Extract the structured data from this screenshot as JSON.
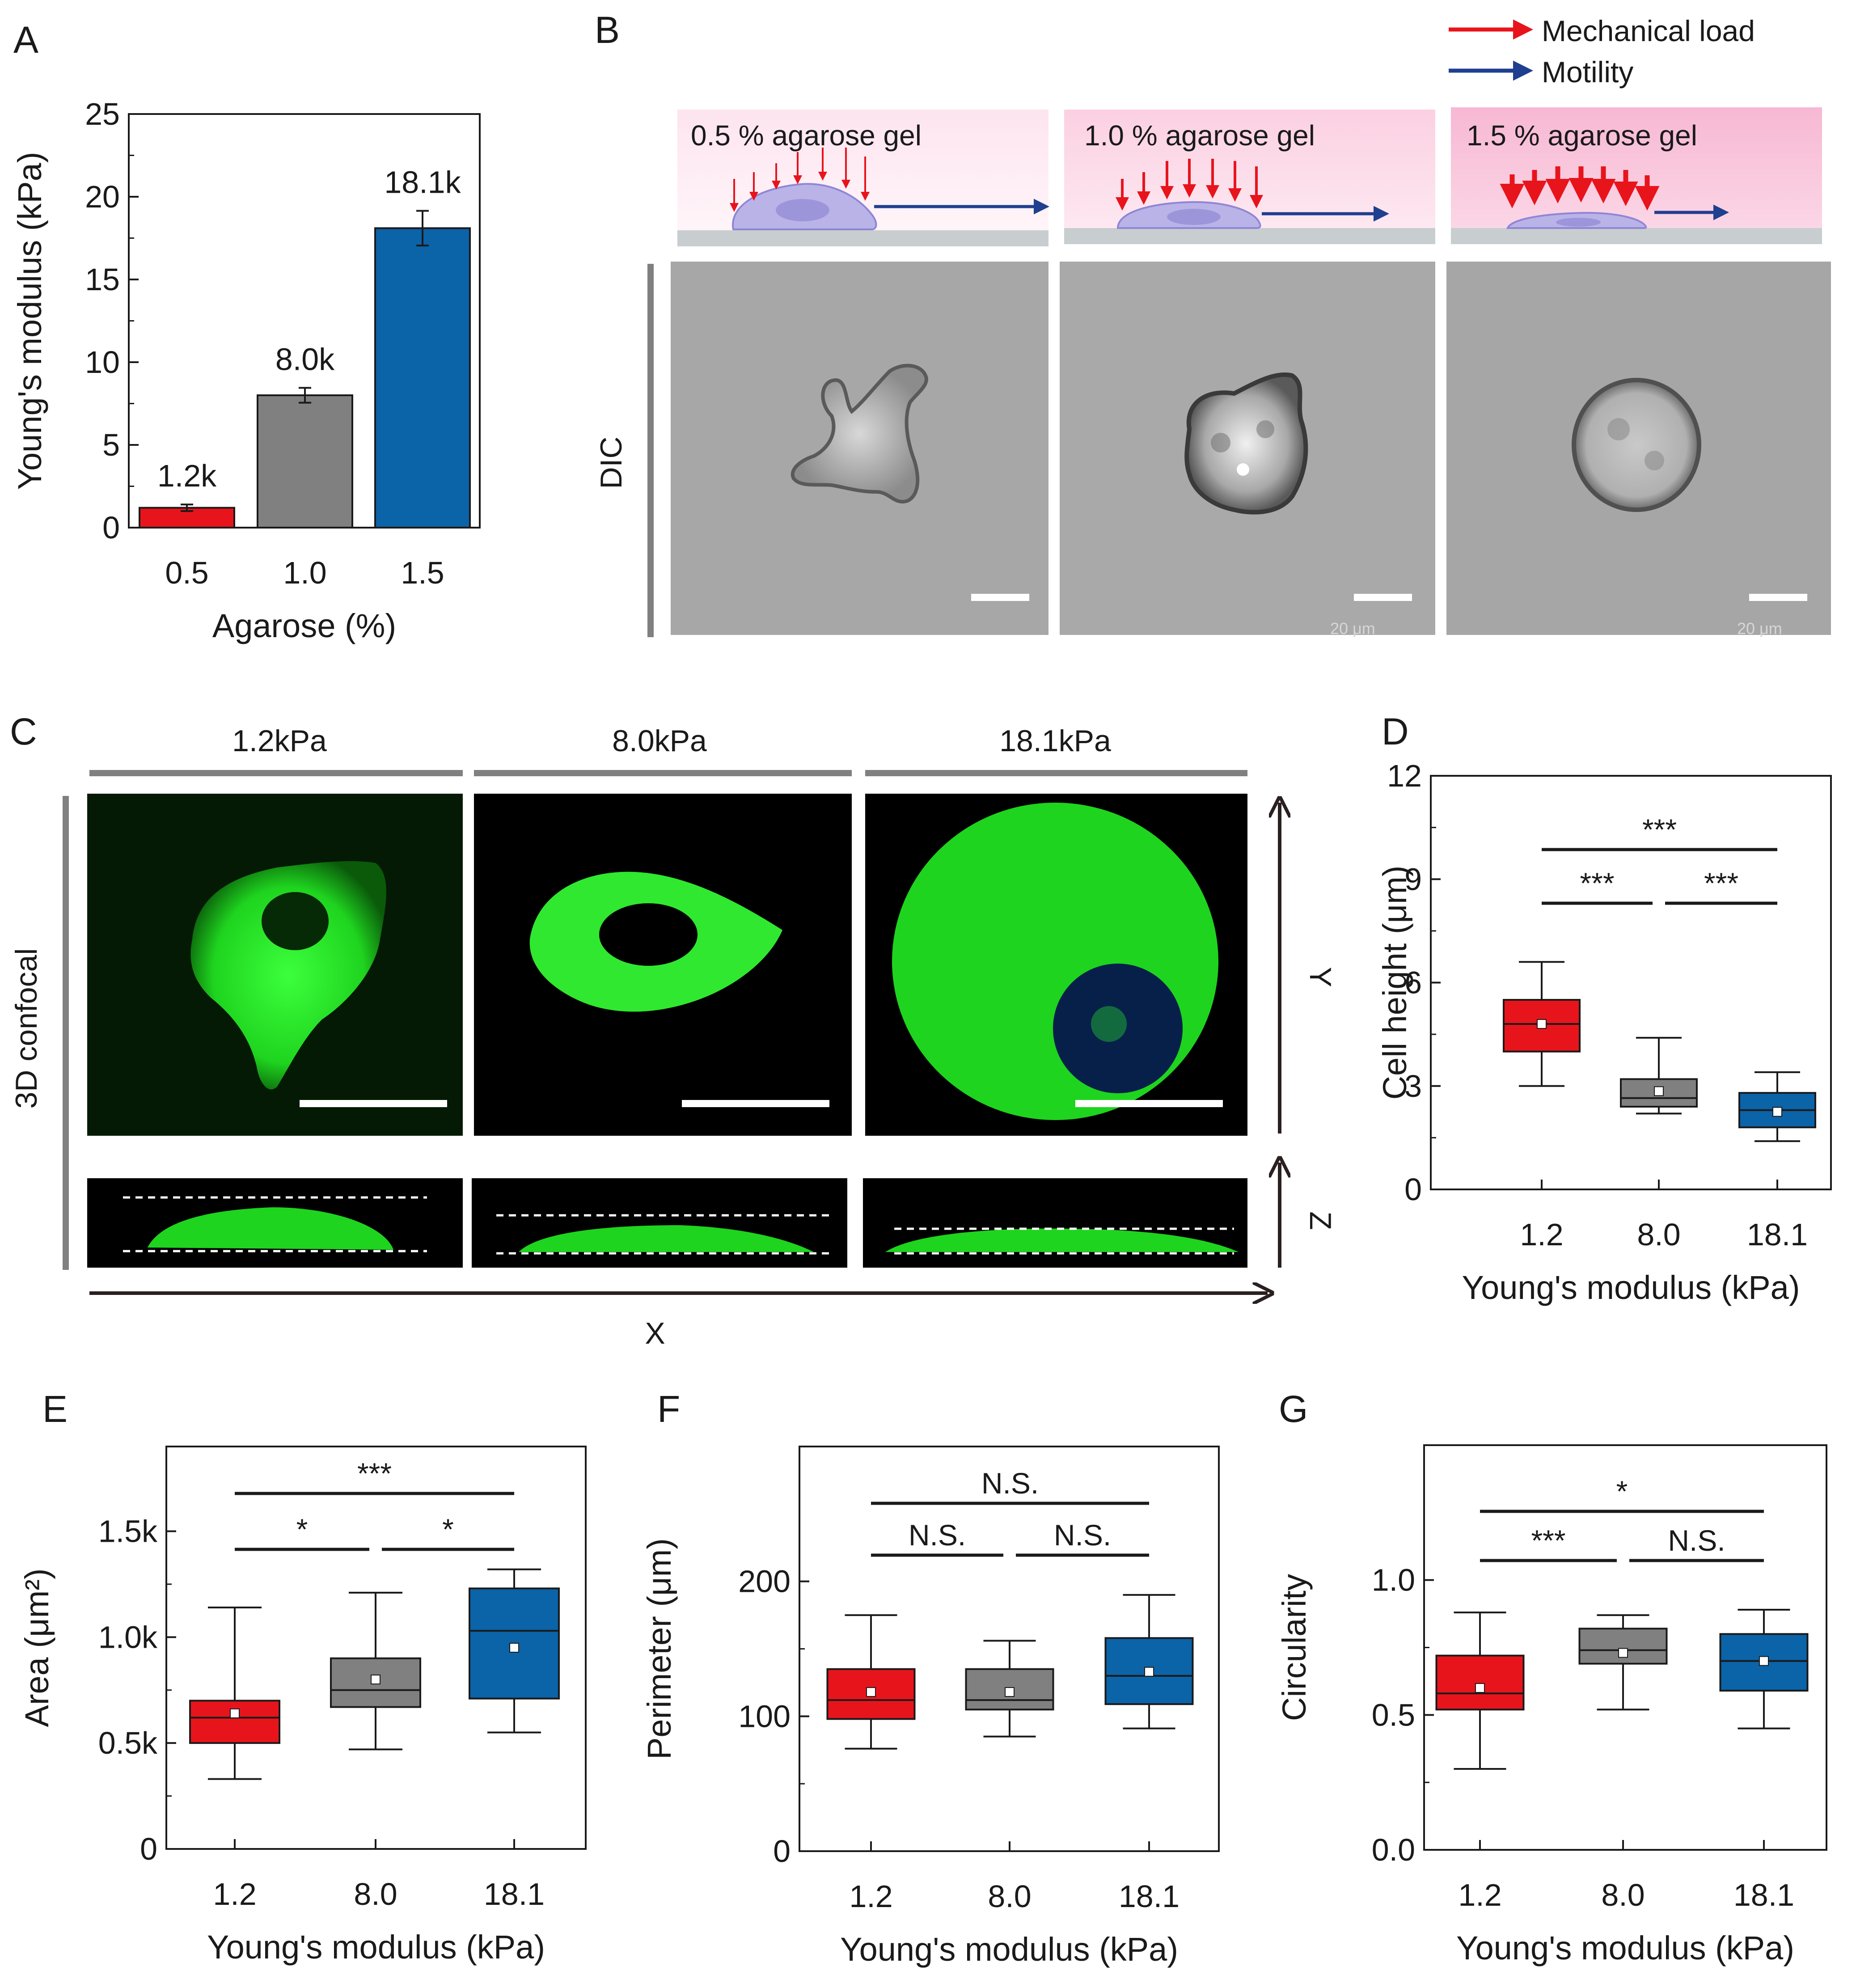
{
  "panels": {
    "A": "A",
    "B": "B",
    "C": "C",
    "D": "D",
    "E": "E",
    "F": "F",
    "G": "G"
  },
  "legend": {
    "load_label": "Mechanical load",
    "motility_label": "Motility",
    "load_color": "#e8141c",
    "motility_color": "#1f3f8f"
  },
  "gels": [
    "0.5 % agarose gel",
    "1.0 % agarose gel",
    "1.5 % agarose gel"
  ],
  "dic_label": "DIC",
  "scale_labels": [
    "20 μm",
    "20 μm"
  ],
  "confocal": {
    "row_label": "3D confocal",
    "columns": [
      "1.2kPa",
      "8.0kPa",
      "18.1kPa"
    ],
    "axis_y": "Y",
    "axis_z": "Z",
    "axis_x": "X"
  },
  "colors": {
    "red": "#e8141c",
    "gray": "#808080",
    "blue": "#0b63a8"
  },
  "chart_data": [
    {
      "panel": "A",
      "type": "bar",
      "categories": [
        "0.5",
        "1.0",
        "1.5"
      ],
      "values": [
        1.2,
        8.0,
        18.1
      ],
      "errors": [
        0.2,
        0.45,
        1.05
      ],
      "value_labels": [
        "1.2k",
        "8.0k",
        "18.1k"
      ],
      "colors": [
        "#e8141c",
        "#808080",
        "#0b63a8"
      ],
      "xlabel": "Agarose (%)",
      "ylabel": "Young's modulus (kPa)",
      "ylim": [
        0,
        25
      ],
      "yticks": [
        "0",
        "5",
        "10",
        "15",
        "20",
        "25"
      ]
    },
    {
      "panel": "D",
      "type": "box",
      "categories": [
        "1.2",
        "8.0",
        "18.1"
      ],
      "boxes": [
        {
          "min": 3.0,
          "q1": 4.0,
          "median": 4.8,
          "q3": 5.5,
          "max": 6.6,
          "mean": 4.8
        },
        {
          "min": 2.2,
          "q1": 2.4,
          "median": 2.65,
          "q3": 3.2,
          "max": 4.4,
          "mean": 2.85
        },
        {
          "min": 1.4,
          "q1": 1.8,
          "median": 2.3,
          "q3": 2.8,
          "max": 3.4,
          "mean": 2.25
        }
      ],
      "xlabel": "Young's modulus (kPa)",
      "ylabel": "Cell height (μm)",
      "ylim": [
        0,
        12
      ],
      "yticks": [
        "0",
        "3",
        "6",
        "9",
        "12"
      ],
      "significance": [
        {
          "from": 0,
          "to": 2,
          "label": "***"
        },
        {
          "from": 0,
          "to": 1,
          "label": "***"
        },
        {
          "from": 1,
          "to": 2,
          "label": "***"
        }
      ]
    },
    {
      "panel": "E",
      "type": "box",
      "categories": [
        "1.2",
        "8.0",
        "18.1"
      ],
      "boxes": [
        {
          "min": 330,
          "q1": 500,
          "median": 620,
          "q3": 700,
          "max": 1140,
          "mean": 640
        },
        {
          "min": 470,
          "q1": 670,
          "median": 750,
          "q3": 900,
          "max": 1210,
          "mean": 800
        },
        {
          "min": 550,
          "q1": 710,
          "median": 1030,
          "q3": 1230,
          "max": 1320,
          "mean": 950
        }
      ],
      "xlabel": "Young's modulus (kPa)",
      "ylabel": "Area (μm²)",
      "ylim": [
        0,
        1900
      ],
      "yticks": [
        "0",
        "0.5k",
        "1.0k",
        "1.5k"
      ],
      "significance": [
        {
          "from": 0,
          "to": 2,
          "label": "***"
        },
        {
          "from": 0,
          "to": 1,
          "label": "*"
        },
        {
          "from": 1,
          "to": 2,
          "label": "*"
        }
      ]
    },
    {
      "panel": "F",
      "type": "box",
      "categories": [
        "1.2",
        "8.0",
        "18.1"
      ],
      "boxes": [
        {
          "min": 76,
          "q1": 98,
          "median": 112,
          "q3": 135,
          "max": 175,
          "mean": 118
        },
        {
          "min": 85,
          "q1": 105,
          "median": 112,
          "q3": 135,
          "max": 156,
          "mean": 118
        },
        {
          "min": 91,
          "q1": 109,
          "median": 130,
          "q3": 158,
          "max": 190,
          "mean": 133
        }
      ],
      "xlabel": "Young's modulus (kPa)",
      "ylabel": "Perimeter (μm)",
      "ylim": [
        0,
        300
      ],
      "yticks": [
        "0",
        "100",
        "200"
      ],
      "significance": [
        {
          "from": 0,
          "to": 2,
          "label": "N.S."
        },
        {
          "from": 0,
          "to": 1,
          "label": "N.S."
        },
        {
          "from": 1,
          "to": 2,
          "label": "N.S."
        }
      ]
    },
    {
      "panel": "G",
      "type": "box",
      "categories": [
        "1.2",
        "8.0",
        "18.1"
      ],
      "boxes": [
        {
          "min": 0.3,
          "q1": 0.52,
          "median": 0.58,
          "q3": 0.72,
          "max": 0.88,
          "mean": 0.6
        },
        {
          "min": 0.52,
          "q1": 0.69,
          "median": 0.74,
          "q3": 0.82,
          "max": 0.87,
          "mean": 0.73
        },
        {
          "min": 0.45,
          "q1": 0.59,
          "median": 0.7,
          "q3": 0.8,
          "max": 0.89,
          "mean": 0.7
        }
      ],
      "xlabel": "Young's modulus (kPa)",
      "ylabel": "Circularity",
      "ylim": [
        0,
        1.5
      ],
      "yticks": [
        "0.0",
        "0.5",
        "1.0"
      ],
      "significance": [
        {
          "from": 0,
          "to": 2,
          "label": "*"
        },
        {
          "from": 0,
          "to": 1,
          "label": "***"
        },
        {
          "from": 1,
          "to": 2,
          "label": "N.S."
        }
      ]
    }
  ]
}
